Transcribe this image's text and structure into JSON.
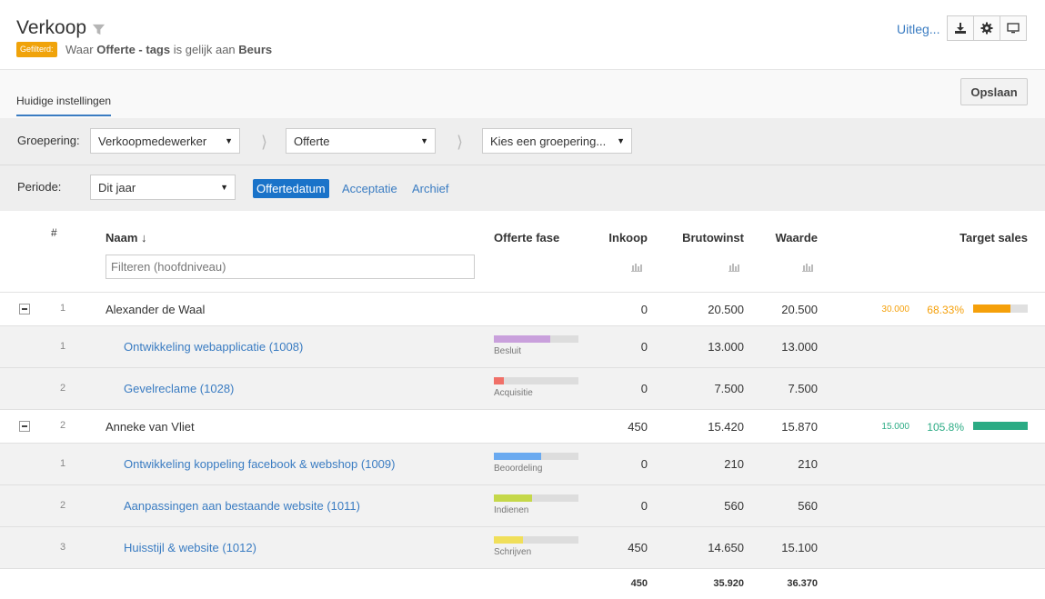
{
  "header": {
    "title": "Verkoop",
    "badge": "Gefilterd:",
    "filter": {
      "prefix": "Waar",
      "field": "Offerte - tags",
      "mid": "is gelijk aan",
      "value": "Beurs"
    },
    "help_link": "Uitleg...",
    "icons": [
      "download-icon",
      "gear-icon",
      "monitor-icon"
    ]
  },
  "tabs": {
    "active": "Huidige instellingen",
    "save_label": "Opslaan"
  },
  "settings": {
    "grouping_label": "Groepering:",
    "grouping1": "Verkoopmedewerker",
    "grouping2": "Offerte",
    "grouping3": "Kies een groepering...",
    "period_label": "Periode:",
    "period": "Dit jaar",
    "date_types": [
      "Offertedatum",
      "Acceptatie",
      "Archief"
    ],
    "active_date_type": "Offertedatum"
  },
  "table": {
    "columns": {
      "num": "#",
      "name": "Naam ↓",
      "phase": "Offerte fase",
      "inkoop": "Inkoop",
      "brutowinst": "Brutowinst",
      "waarde": "Waarde",
      "target": "Target sales"
    },
    "filter_placeholder": "Filteren (hoofdniveau)",
    "groups": [
      {
        "index": "1",
        "name": "Alexander de Waal",
        "inkoop": "0",
        "brutowinst": "20.500",
        "waarde": "20.500",
        "target": "30.000",
        "pct": "68.33%",
        "pct_value": 0.6833,
        "color": "#f5a00a",
        "children": [
          {
            "index": "1",
            "name": "Ontwikkeling webapplicatie (1008)",
            "phase": "Besluit",
            "phase_fill": 0.67,
            "phase_color": "#c9a0dc",
            "inkoop": "0",
            "brutowinst": "13.000",
            "waarde": "13.000"
          },
          {
            "index": "2",
            "name": "Gevelreclame (1028)",
            "phase": "Acquisitie",
            "phase_fill": 0.12,
            "phase_color": "#f07068",
            "inkoop": "0",
            "brutowinst": "7.500",
            "waarde": "7.500"
          }
        ]
      },
      {
        "index": "2",
        "name": "Anneke van Vliet",
        "inkoop": "450",
        "brutowinst": "15.420",
        "waarde": "15.870",
        "target": "15.000",
        "pct": "105.8%",
        "pct_value": 1.0,
        "color": "#2bab84",
        "children": [
          {
            "index": "1",
            "name": "Ontwikkeling koppeling facebook & webshop (1009)",
            "phase": "Beoordeling",
            "phase_fill": 0.56,
            "phase_color": "#6aaaf0",
            "inkoop": "0",
            "brutowinst": "210",
            "waarde": "210"
          },
          {
            "index": "2",
            "name": "Aanpassingen aan bestaande website (1011)",
            "phase": "Indienen",
            "phase_fill": 0.45,
            "phase_color": "#c5d84a",
            "inkoop": "0",
            "brutowinst": "560",
            "waarde": "560"
          },
          {
            "index": "3",
            "name": "Huisstijl & website (1012)",
            "phase": "Schrijven",
            "phase_fill": 0.34,
            "phase_color": "#f0df5a",
            "inkoop": "450",
            "brutowinst": "14.650",
            "waarde": "15.100"
          }
        ]
      }
    ],
    "totals": {
      "inkoop": "450",
      "brutowinst": "35.920",
      "waarde": "36.370"
    }
  }
}
